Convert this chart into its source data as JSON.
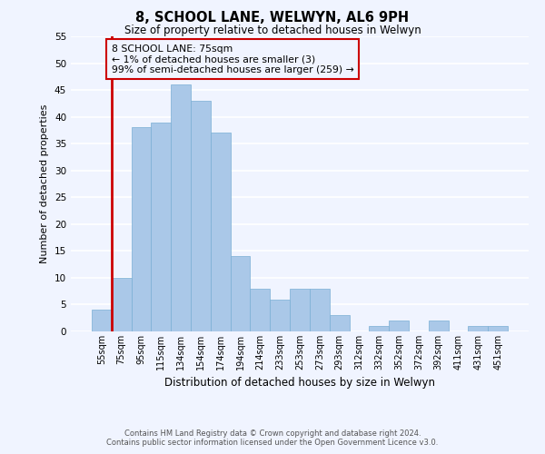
{
  "title": "8, SCHOOL LANE, WELWYN, AL6 9PH",
  "subtitle": "Size of property relative to detached houses in Welwyn",
  "xlabel": "Distribution of detached houses by size in Welwyn",
  "ylabel": "Number of detached properties",
  "categories": [
    "55sqm",
    "75sqm",
    "95sqm",
    "115sqm",
    "134sqm",
    "154sqm",
    "174sqm",
    "194sqm",
    "214sqm",
    "233sqm",
    "253sqm",
    "273sqm",
    "293sqm",
    "312sqm",
    "332sqm",
    "352sqm",
    "372sqm",
    "392sqm",
    "411sqm",
    "431sqm",
    "451sqm"
  ],
  "values": [
    4,
    10,
    38,
    39,
    46,
    43,
    37,
    14,
    8,
    6,
    8,
    8,
    3,
    0,
    1,
    2,
    0,
    2,
    0,
    1,
    1
  ],
  "highlight_index": 1,
  "bar_color": "#aac8e8",
  "bar_edge_color": "#7aafd4",
  "highlight_color": "#cc0000",
  "ylim": [
    0,
    55
  ],
  "yticks": [
    0,
    5,
    10,
    15,
    20,
    25,
    30,
    35,
    40,
    45,
    50,
    55
  ],
  "annotation_title": "8 SCHOOL LANE: 75sqm",
  "annotation_line1": "← 1% of detached houses are smaller (3)",
  "annotation_line2": "99% of semi-detached houses are larger (259) →",
  "footer_line1": "Contains HM Land Registry data © Crown copyright and database right 2024.",
  "footer_line2": "Contains public sector information licensed under the Open Government Licence v3.0.",
  "background_color": "#f0f4ff"
}
